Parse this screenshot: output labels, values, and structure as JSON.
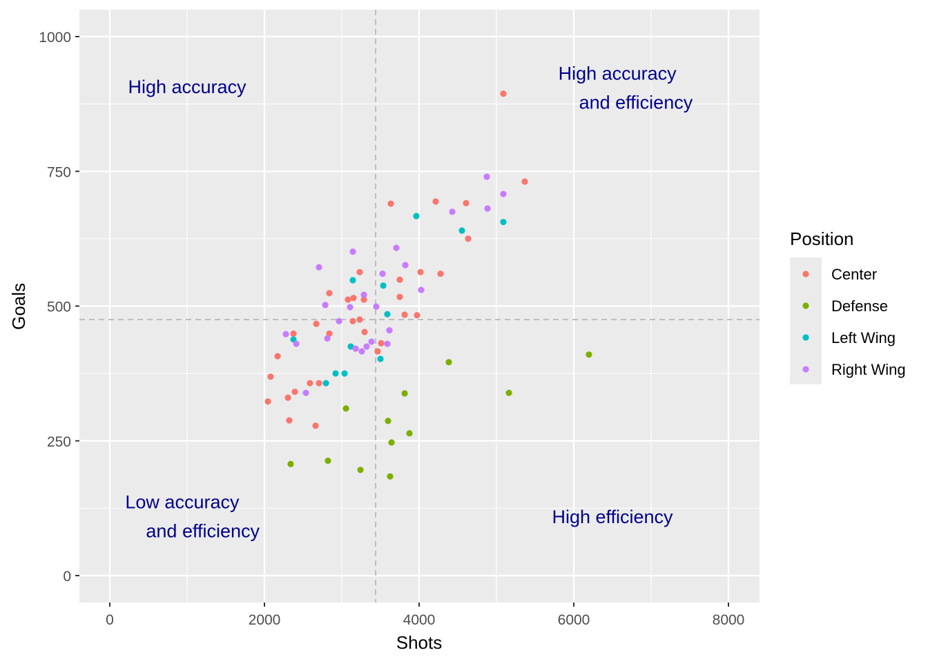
{
  "chart_data": {
    "type": "scatter",
    "title": "",
    "xlabel": "Shots",
    "ylabel": "Goals",
    "xlim": [
      -400,
      8400
    ],
    "ylim": [
      -50,
      1050
    ],
    "xticks": [
      0,
      2000,
      4000,
      6000,
      8000
    ],
    "xtick_labels": [
      "0",
      "2000",
      "4000",
      "6000",
      "8000"
    ],
    "yticks": [
      0,
      250,
      500,
      750,
      1000
    ],
    "ytick_labels": [
      "0",
      "250",
      "500",
      "750",
      "1000"
    ],
    "grid": true,
    "reference_lines": {
      "x": 3437,
      "y": 475
    },
    "annotations": [
      {
        "lines": [
          "High accuracy"
        ],
        "x": 1000,
        "y": 895,
        "align": "middle"
      },
      {
        "lines": [
          "High accuracy",
          "    and efficiency"
        ],
        "x": 5800,
        "y": 920,
        "align": "start"
      },
      {
        "lines": [
          "Low accuracy",
          "    and efficiency"
        ],
        "x": 200,
        "y": 125,
        "align": "start"
      },
      {
        "lines": [
          "High efficiency"
        ],
        "x": 6500,
        "y": 97,
        "align": "middle"
      }
    ],
    "legend": {
      "title": "Position",
      "placement": "right"
    },
    "series": [
      {
        "name": "Center",
        "color": "#F8766D",
        "points": [
          [
            5089,
            894
          ],
          [
            5366,
            731
          ],
          [
            4214,
            694
          ],
          [
            4607,
            691
          ],
          [
            3634,
            690
          ],
          [
            4634,
            625
          ],
          [
            3232,
            563
          ],
          [
            4018,
            563
          ],
          [
            4277,
            560
          ],
          [
            3750,
            549
          ],
          [
            2839,
            524
          ],
          [
            3750,
            517
          ],
          [
            3152,
            515
          ],
          [
            3286,
            512
          ],
          [
            3080,
            512
          ],
          [
            3813,
            484
          ],
          [
            3973,
            483
          ],
          [
            3232,
            475
          ],
          [
            3143,
            472
          ],
          [
            2670,
            467
          ],
          [
            2375,
            449
          ],
          [
            2839,
            449
          ],
          [
            3295,
            452
          ],
          [
            3509,
            431
          ],
          [
            3464,
            416
          ],
          [
            2170,
            407
          ],
          [
            2080,
            369
          ],
          [
            2589,
            357
          ],
          [
            2705,
            357
          ],
          [
            2393,
            341
          ],
          [
            2304,
            330
          ],
          [
            2045,
            323
          ],
          [
            2321,
            288
          ],
          [
            2661,
            278
          ]
        ]
      },
      {
        "name": "Defense",
        "color": "#7CAE00",
        "points": [
          [
            6196,
            410
          ],
          [
            4384,
            396
          ],
          [
            5161,
            339
          ],
          [
            3813,
            338
          ],
          [
            3054,
            310
          ],
          [
            3598,
            287
          ],
          [
            3875,
            264
          ],
          [
            3643,
            247
          ],
          [
            2821,
            213
          ],
          [
            2339,
            207
          ],
          [
            3241,
            196
          ],
          [
            3625,
            184
          ]
        ]
      },
      {
        "name": "Left Wing",
        "color": "#00BFC4",
        "points": [
          [
            3964,
            667
          ],
          [
            4554,
            640
          ],
          [
            5089,
            656
          ],
          [
            3143,
            548
          ],
          [
            3536,
            538
          ],
          [
            3589,
            485
          ],
          [
            2375,
            438
          ],
          [
            3116,
            425
          ],
          [
            3500,
            402
          ],
          [
            2920,
            375
          ],
          [
            3036,
            375
          ],
          [
            2795,
            357
          ]
        ]
      },
      {
        "name": "Right Wing",
        "color": "#C77CFF",
        "points": [
          [
            4875,
            740
          ],
          [
            5089,
            708
          ],
          [
            4429,
            675
          ],
          [
            4884,
            681
          ],
          [
            3143,
            601
          ],
          [
            3705,
            608
          ],
          [
            2705,
            572
          ],
          [
            3821,
            576
          ],
          [
            3527,
            560
          ],
          [
            4027,
            530
          ],
          [
            3286,
            521
          ],
          [
            2786,
            502
          ],
          [
            3107,
            498
          ],
          [
            3446,
            499
          ],
          [
            2964,
            472
          ],
          [
            3616,
            455
          ],
          [
            2277,
            448
          ],
          [
            2813,
            440
          ],
          [
            2411,
            430
          ],
          [
            3384,
            434
          ],
          [
            3589,
            430
          ],
          [
            3321,
            425
          ],
          [
            3179,
            421
          ],
          [
            3259,
            416
          ],
          [
            2536,
            339
          ]
        ]
      }
    ]
  }
}
